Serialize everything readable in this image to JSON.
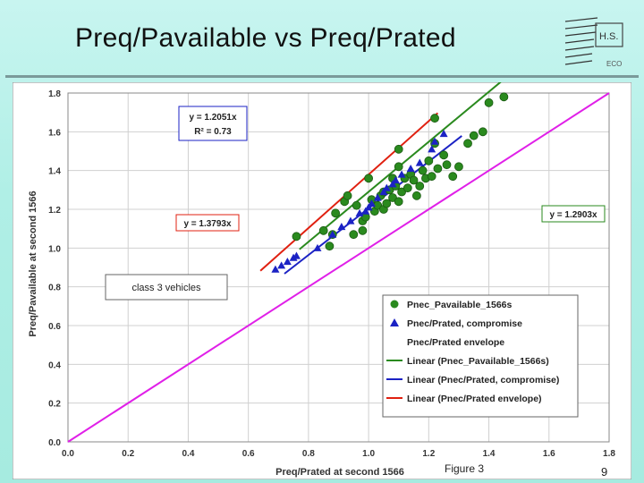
{
  "slide": {
    "title": "Preq/Pavailable vs Preq/Prated",
    "caption": "Figure 3",
    "page_number": "9",
    "logo_text": "H.S.",
    "logo_subtext": "ECO"
  },
  "colors": {
    "background": "#b0efe6",
    "green": "#2a8a1e",
    "blue": "#1b22c4",
    "red": "#e02010",
    "magenta": "#e020e8"
  },
  "chart_data": {
    "type": "scatter",
    "title": "",
    "xlabel": "Preq/Prated at second 1566",
    "ylabel": "Preq/Pavailable at second 1566",
    "xlim": [
      0.0,
      1.8
    ],
    "ylim": [
      0.0,
      1.8
    ],
    "x_ticks": [
      "0.0",
      "0.2",
      "0.4",
      "0.6",
      "0.8",
      "1.0",
      "1.2",
      "1.4",
      "1.6",
      "1.8"
    ],
    "y_ticks": [
      "0.0",
      "0.2",
      "0.4",
      "0.6",
      "0.8",
      "1.0",
      "1.2",
      "1.4",
      "1.6",
      "1.8"
    ],
    "grid": true,
    "legend_position": "bottom-right",
    "series": [
      {
        "name": "Pnec_Pavailable_1566s",
        "marker": "circle",
        "color": "#2a8a1e",
        "points": [
          [
            0.76,
            1.06
          ],
          [
            0.85,
            1.09
          ],
          [
            0.87,
            1.01
          ],
          [
            0.88,
            1.07
          ],
          [
            0.89,
            1.18
          ],
          [
            0.92,
            1.24
          ],
          [
            0.93,
            1.27
          ],
          [
            0.95,
            1.07
          ],
          [
            0.96,
            1.22
          ],
          [
            0.98,
            1.09
          ],
          [
            0.98,
            1.14
          ],
          [
            0.99,
            1.16
          ],
          [
            1.0,
            1.36
          ],
          [
            1.01,
            1.25
          ],
          [
            1.02,
            1.19
          ],
          [
            1.03,
            1.22
          ],
          [
            1.04,
            1.27
          ],
          [
            1.05,
            1.2
          ],
          [
            1.05,
            1.29
          ],
          [
            1.06,
            1.23
          ],
          [
            1.07,
            1.3
          ],
          [
            1.08,
            1.26
          ],
          [
            1.08,
            1.36
          ],
          [
            1.09,
            1.32
          ],
          [
            1.1,
            1.24
          ],
          [
            1.1,
            1.42
          ],
          [
            1.1,
            1.51
          ],
          [
            1.11,
            1.29
          ],
          [
            1.12,
            1.36
          ],
          [
            1.13,
            1.31
          ],
          [
            1.14,
            1.38
          ],
          [
            1.15,
            1.35
          ],
          [
            1.16,
            1.27
          ],
          [
            1.17,
            1.32
          ],
          [
            1.18,
            1.4
          ],
          [
            1.19,
            1.36
          ],
          [
            1.2,
            1.45
          ],
          [
            1.21,
            1.37
          ],
          [
            1.22,
            1.54
          ],
          [
            1.23,
            1.41
          ],
          [
            1.25,
            1.48
          ],
          [
            1.26,
            1.43
          ],
          [
            1.28,
            1.37
          ],
          [
            1.3,
            1.42
          ],
          [
            1.33,
            1.54
          ],
          [
            1.35,
            1.58
          ],
          [
            1.38,
            1.6
          ],
          [
            1.4,
            1.75
          ],
          [
            1.45,
            1.78
          ],
          [
            1.22,
            1.67
          ]
        ]
      },
      {
        "name": "Pnec/Prated, compromise",
        "marker": "triangle",
        "color": "#1b22c4",
        "points": [
          [
            0.69,
            0.89
          ],
          [
            0.71,
            0.91
          ],
          [
            0.73,
            0.93
          ],
          [
            0.75,
            0.95
          ],
          [
            0.76,
            0.96
          ],
          [
            0.83,
            1.0
          ],
          [
            0.88,
            1.07
          ],
          [
            0.91,
            1.11
          ],
          [
            0.94,
            1.14
          ],
          [
            0.97,
            1.18
          ],
          [
            0.99,
            1.19
          ],
          [
            1.0,
            1.21
          ],
          [
            1.01,
            1.23
          ],
          [
            1.03,
            1.26
          ],
          [
            1.05,
            1.29
          ],
          [
            1.06,
            1.31
          ],
          [
            1.08,
            1.33
          ],
          [
            1.09,
            1.35
          ],
          [
            1.11,
            1.38
          ],
          [
            1.14,
            1.41
          ],
          [
            1.17,
            1.44
          ],
          [
            1.21,
            1.51
          ],
          [
            1.22,
            1.55
          ],
          [
            1.25,
            1.59
          ]
        ]
      },
      {
        "name": "Pnec/Prated envelope",
        "marker": "none",
        "color": "#e02010",
        "points": [
          [
            0.77,
            1.06
          ],
          [
            0.93,
            1.28
          ],
          [
            1.11,
            1.52
          ],
          [
            1.22,
            1.68
          ]
        ]
      }
    ],
    "trendlines": [
      {
        "name": "Linear (Pnec_Pavailable_1566s)",
        "color": "#2a8a1e",
        "slope": 1.2903,
        "x_range": [
          0.77,
          1.44
        ],
        "equation": "y = 1.2903x"
      },
      {
        "name": "Linear (Pnec/Prated, compromise)",
        "color": "#1b22c4",
        "slope": 1.2051,
        "x_range": [
          0.72,
          1.31
        ],
        "equation": "y = 1.2051x",
        "r2": "R² = 0.73"
      },
      {
        "name": "Linear (Pnec/Prated envelope)",
        "color": "#e02010",
        "slope": 1.3793,
        "x_range": [
          0.64,
          1.23
        ],
        "equation": "y = 1.3793x"
      },
      {
        "name": "",
        "color": "#e020e8",
        "slope": 1.0,
        "x_range": [
          0.0,
          1.8
        ],
        "equation": ""
      }
    ],
    "annotations": {
      "blue_eq": "y = 1.2051x",
      "blue_r2": "R² = 0.73",
      "red_eq": "y = 1.3793x",
      "green_eq": "y = 1.2903x",
      "class_label": "class 3 vehicles"
    },
    "legend": [
      {
        "label": "Pnec_Pavailable_1566s",
        "symbol": "circle",
        "color": "#2a8a1e"
      },
      {
        "label": "Pnec/Prated, compromise",
        "symbol": "triangle",
        "color": "#1b22c4"
      },
      {
        "label": "Pnec/Prated envelope",
        "symbol": "none",
        "color": "#e02010"
      },
      {
        "label": "Linear (Pnec_Pavailable_1566s)",
        "symbol": "line",
        "color": "#2a8a1e"
      },
      {
        "label": "Linear (Pnec/Prated, compromise)",
        "symbol": "line",
        "color": "#1b22c4"
      },
      {
        "label": "Linear (Pnec/Prated envelope)",
        "symbol": "line",
        "color": "#e02010"
      }
    ]
  }
}
